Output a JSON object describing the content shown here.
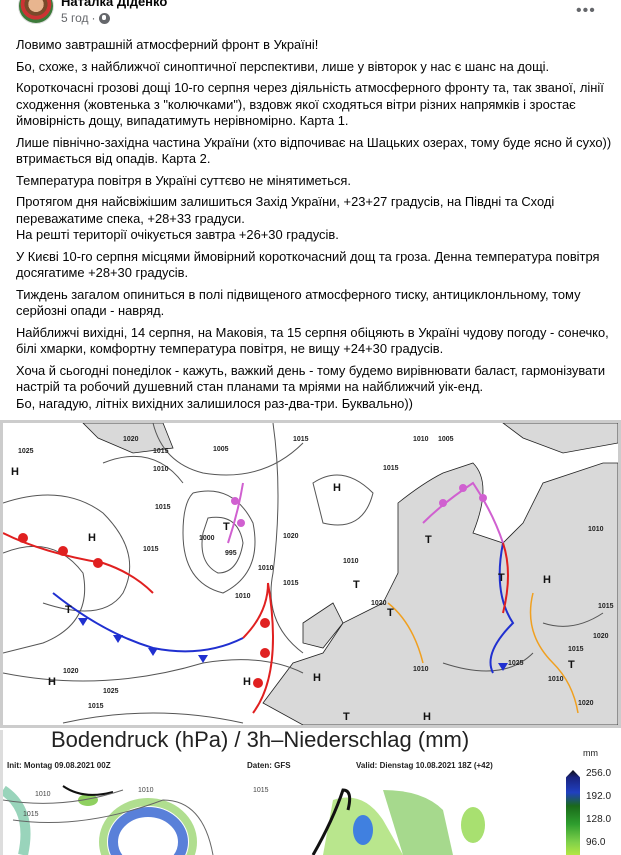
{
  "post": {
    "author": "Наталка Діденко",
    "time": "5 год",
    "separator": "·",
    "more": "•••",
    "paragraphs": [
      [
        "Ловимо завтрашній атмосферний фронт в Україні!"
      ],
      [
        "Бо, схоже, з найближчої синоптичної перспективи, лише у вівторок у нас є шанс на дощі."
      ],
      [
        "Короткочасні грозові дощі 10-го серпня через діяльність атмосферного фронту та, так званої, лінії сходження (жовтенька з \"колючками\"), вздовж якої сходяться вітри різних напрямків і зростає ймовірність дощу, випадатимуть нерівномірно. Карта 1."
      ],
      [
        "Лише північно-західна частина України (хто відпочиває на Шацьких озерах, тому буде ясно й сухо)) втримається від опадів. Карта 2."
      ],
      [
        "Температура повітря в Україні суттєво не мінятиметься."
      ],
      [
        "Протягом дня найсвіжішим залишиться Захід України, +23+27 градусів, на Півдні та Сході переважатиме спека, +28+33 градуси.",
        "На решті території очікується завтра +26+30 градусів."
      ],
      [
        "У Києві 10-го серпня місцями ймовірний короткочасний дощ та гроза. Денна температура повітря досягатиме +28+30 градусів."
      ],
      [
        "Тиждень загалом опиниться в полі підвищеного атмосферного тиску, антициклонльному, тому серйозні опади - навряд."
      ],
      [
        "Найближчі вихідні, 14 серпня, на Маковія, та 15 серпня обіцяють в Україні чудову погоду - сонечко, білі хмарки, комфортну температура повітря, не вищу +24+30 градусів."
      ],
      [
        "Хоча й сьогодні понеділок - кажуть, важкий день - тому будемо вирівнювати баласт, гармонізувати настрій та робочий душевний стан планами та мріями на найближчий уік-енд.",
        "Бо, нагадую, літніх вихідних залишилося раз-два-три. Буквально))"
      ]
    ]
  },
  "map1": {
    "labels": [
      "1025",
      "1020",
      "1015",
      "1010",
      "1005",
      "1000",
      "995",
      "1010",
      "1015",
      "1020",
      "1015",
      "1010",
      "1005",
      "1015",
      "1010",
      "1020",
      "1015",
      "1010",
      "1015",
      "1010",
      "1025",
      "1020",
      "1015",
      "1010",
      "1015",
      "1025",
      "1020",
      "1015",
      "1010",
      "1020"
    ],
    "pressure_centers": [
      "H",
      "H",
      "H",
      "H",
      "H",
      "H",
      "H",
      "H",
      "T",
      "T",
      "T",
      "T",
      "T",
      "T",
      "T",
      "T"
    ],
    "colors": {
      "warm_front": "#e02020",
      "cold_front": "#2030d0",
      "occluded": "#d060d0",
      "convergence": "#f0a020",
      "isobar": "#555555",
      "land": "#d9d9d9"
    }
  },
  "map2": {
    "title": "Bodendruck (hPa) / 3h–Niederschlag (mm)",
    "init": "Init: Montag 09.08.2021 00Z",
    "data": "Daten: GFS",
    "valid": "Valid: Dienstag 10.08.2021 18Z (+42)",
    "unit": "mm",
    "legend": [
      "256.0",
      "192.0",
      "128.0",
      "96.0"
    ],
    "isobars": [
      "1010",
      "1010",
      "1015",
      "1015"
    ]
  }
}
